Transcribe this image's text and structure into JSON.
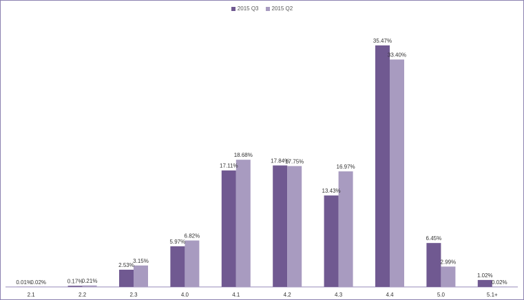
{
  "chart_data": {
    "type": "bar",
    "title": "",
    "xlabel": "",
    "ylabel": "",
    "ylim": [
      0,
      37
    ],
    "grid": false,
    "legend_position": "top-center",
    "categories": [
      "2.1",
      "2.2",
      "2.3",
      "4.0",
      "4.1",
      "4.2",
      "4.3",
      "4.4",
      "5.0",
      "5.1+"
    ],
    "series": [
      {
        "name": "2015 Q3",
        "color": "#705991",
        "values": [
          0.01,
          0.17,
          2.53,
          5.97,
          17.11,
          17.84,
          13.43,
          35.47,
          6.45,
          1.02
        ],
        "labels": [
          "0.01%",
          "0.17%",
          "2.53%",
          "5.97%",
          "17.11%",
          "17.84%",
          "13.43%",
          "35.47%",
          "6.45%",
          "1.02%"
        ]
      },
      {
        "name": "2015 Q2",
        "color": "#a89bc0",
        "values": [
          0.02,
          0.21,
          3.15,
          6.82,
          18.68,
          17.75,
          16.97,
          33.4,
          2.99,
          0.02
        ],
        "labels": [
          "0.02%",
          "0.21%",
          "3.15%",
          "6.82%",
          "18.68%",
          "17.75%",
          "16.97%",
          "33.40%",
          "2.99%",
          "0.02%"
        ]
      }
    ]
  }
}
